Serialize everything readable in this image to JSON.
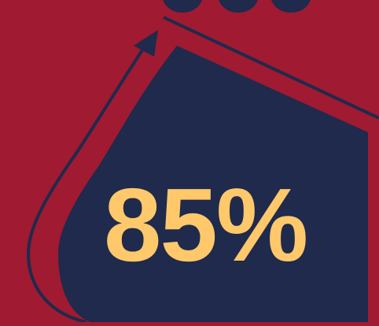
{
  "stat": {
    "value_text": "85%",
    "value": 85
  },
  "colors": {
    "background": "#A01A31",
    "panel": "#1F2A4C",
    "accent_text": "#FFC86A",
    "stroke": "#1F2A4C"
  },
  "icons": {
    "arrow": "upward-curved-arrow-icon"
  }
}
